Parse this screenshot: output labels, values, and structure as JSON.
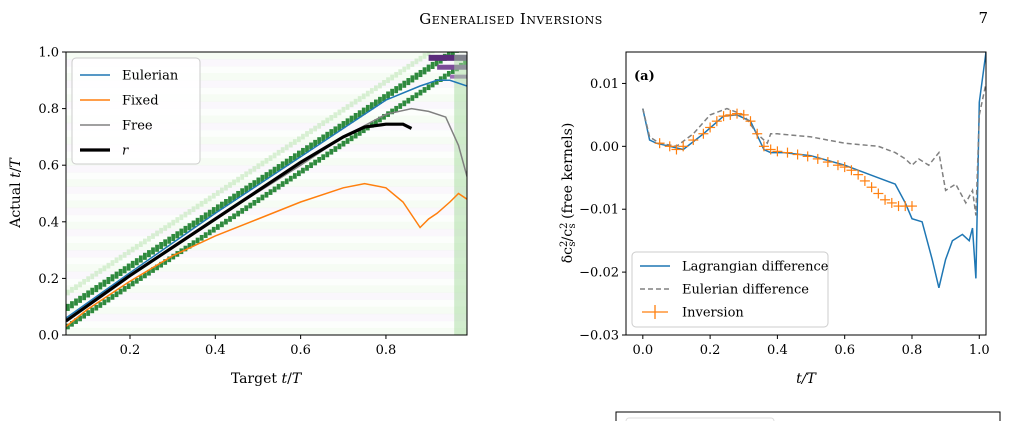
{
  "header": {
    "title": "Generalised Inversions",
    "page_number": "7"
  },
  "chart_data": [
    {
      "id": "left",
      "type": "line",
      "xlabel": "Target t/T",
      "ylabel": "Actual t/T",
      "xlim": [
        0.05,
        0.99
      ],
      "ylim": [
        0,
        1.0
      ],
      "xticks": [
        "0.2",
        "0.4",
        "0.6",
        "0.8"
      ],
      "yticks": [
        "0.0",
        "0.2",
        "0.4",
        "0.6",
        "0.8",
        "1.0"
      ],
      "background": "heatmap",
      "legend_position": "top-left",
      "series": [
        {
          "name": "Eulerian",
          "color": "#1f77b4",
          "x": [
            0.05,
            0.2,
            0.4,
            0.6,
            0.8,
            0.88,
            0.92,
            0.95,
            0.99
          ],
          "y": [
            0.06,
            0.22,
            0.43,
            0.63,
            0.83,
            0.88,
            0.9,
            0.9,
            0.88
          ]
        },
        {
          "name": "Fixed",
          "color": "#ff7f0e",
          "x": [
            0.05,
            0.1,
            0.2,
            0.3,
            0.4,
            0.5,
            0.6,
            0.7,
            0.75,
            0.8,
            0.84,
            0.88,
            0.9,
            0.92,
            0.95,
            0.97,
            0.99
          ],
          "y": [
            0.03,
            0.09,
            0.19,
            0.28,
            0.35,
            0.41,
            0.47,
            0.52,
            0.535,
            0.52,
            0.47,
            0.38,
            0.41,
            0.43,
            0.47,
            0.5,
            0.48
          ]
        },
        {
          "name": "Free",
          "color": "#808080",
          "x": [
            0.05,
            0.2,
            0.4,
            0.6,
            0.7,
            0.8,
            0.86,
            0.9,
            0.94,
            0.97,
            0.99
          ],
          "y": [
            0.05,
            0.21,
            0.41,
            0.6,
            0.7,
            0.78,
            0.8,
            0.79,
            0.77,
            0.67,
            0.56
          ]
        },
        {
          "name": "r",
          "color": "#000000",
          "x": [
            0.05,
            0.2,
            0.4,
            0.6,
            0.7,
            0.75,
            0.8,
            0.84,
            0.86
          ],
          "y": [
            0.05,
            0.21,
            0.41,
            0.61,
            0.7,
            0.735,
            0.745,
            0.745,
            0.73
          ]
        }
      ]
    },
    {
      "id": "right",
      "type": "line",
      "panel_label": "(a)",
      "xlabel": "t/T",
      "ylabel": "δc²_s/c²_s (free kernels)",
      "xlim": [
        -0.05,
        1.02
      ],
      "ylim": [
        -0.03,
        0.015
      ],
      "xticks": [
        "0.0",
        "0.2",
        "0.4",
        "0.6",
        "0.8",
        "1.0"
      ],
      "yticks": [
        "−0.03",
        "−0.02",
        "−0.01",
        "0.00",
        "0.01"
      ],
      "legend_position": "bottom-left",
      "series": [
        {
          "name": "Lagrangian difference",
          "color": "#1f77b4",
          "style": "solid",
          "x": [
            0.0,
            0.02,
            0.04,
            0.08,
            0.12,
            0.18,
            0.24,
            0.28,
            0.32,
            0.36,
            0.38,
            0.42,
            0.5,
            0.6,
            0.7,
            0.75,
            0.78,
            0.8,
            0.83,
            0.86,
            0.88,
            0.9,
            0.92,
            0.95,
            0.97,
            0.98,
            0.99,
            1.0,
            1.02
          ],
          "y": [
            0.006,
            0.001,
            0.0005,
            0.0,
            -0.0005,
            0.002,
            0.0048,
            0.005,
            0.004,
            -0.0005,
            -0.001,
            -0.001,
            -0.0015,
            -0.003,
            -0.005,
            -0.006,
            -0.009,
            -0.0115,
            -0.012,
            -0.018,
            -0.0225,
            -0.018,
            -0.015,
            -0.014,
            -0.015,
            -0.013,
            -0.021,
            0.007,
            0.015
          ]
        },
        {
          "name": "Eulerian difference",
          "color": "#808080",
          "style": "dashed",
          "x": [
            0.0,
            0.02,
            0.05,
            0.1,
            0.15,
            0.2,
            0.25,
            0.3,
            0.34,
            0.37,
            0.38,
            0.4,
            0.5,
            0.6,
            0.7,
            0.75,
            0.78,
            0.8,
            0.82,
            0.85,
            0.88,
            0.9,
            0.93,
            0.96,
            0.98,
            0.99,
            1.0,
            1.02
          ],
          "y": [
            0.006,
            0.0015,
            0.0005,
            0.0,
            0.002,
            0.005,
            0.006,
            0.005,
            0.002,
            0.0005,
            0.002,
            0.002,
            0.0015,
            0.0005,
            0.0,
            -0.001,
            -0.002,
            -0.003,
            -0.002,
            -0.003,
            -0.001,
            -0.007,
            -0.006,
            -0.009,
            -0.007,
            -0.011,
            0.005,
            0.01
          ]
        },
        {
          "name": "Inversion",
          "color": "#ff7f0e",
          "style": "errorbar",
          "x": [
            0.05,
            0.08,
            0.1,
            0.12,
            0.15,
            0.18,
            0.2,
            0.22,
            0.24,
            0.26,
            0.28,
            0.3,
            0.32,
            0.34,
            0.36,
            0.38,
            0.4,
            0.43,
            0.46,
            0.49,
            0.52,
            0.55,
            0.58,
            0.6,
            0.62,
            0.64,
            0.66,
            0.68,
            0.7,
            0.72,
            0.74,
            0.76,
            0.78,
            0.8
          ],
          "y": [
            0.0005,
            0.0,
            -0.0005,
            0.0,
            0.001,
            0.002,
            0.003,
            0.004,
            0.0048,
            0.005,
            0.0052,
            0.005,
            0.004,
            0.002,
            0.0,
            -0.0005,
            -0.0008,
            -0.001,
            -0.0013,
            -0.0016,
            -0.002,
            -0.0025,
            -0.003,
            -0.0033,
            -0.0038,
            -0.0045,
            -0.0055,
            -0.0065,
            -0.0075,
            -0.0085,
            -0.009,
            -0.0095,
            -0.0095,
            -0.0095
          ]
        }
      ]
    }
  ]
}
